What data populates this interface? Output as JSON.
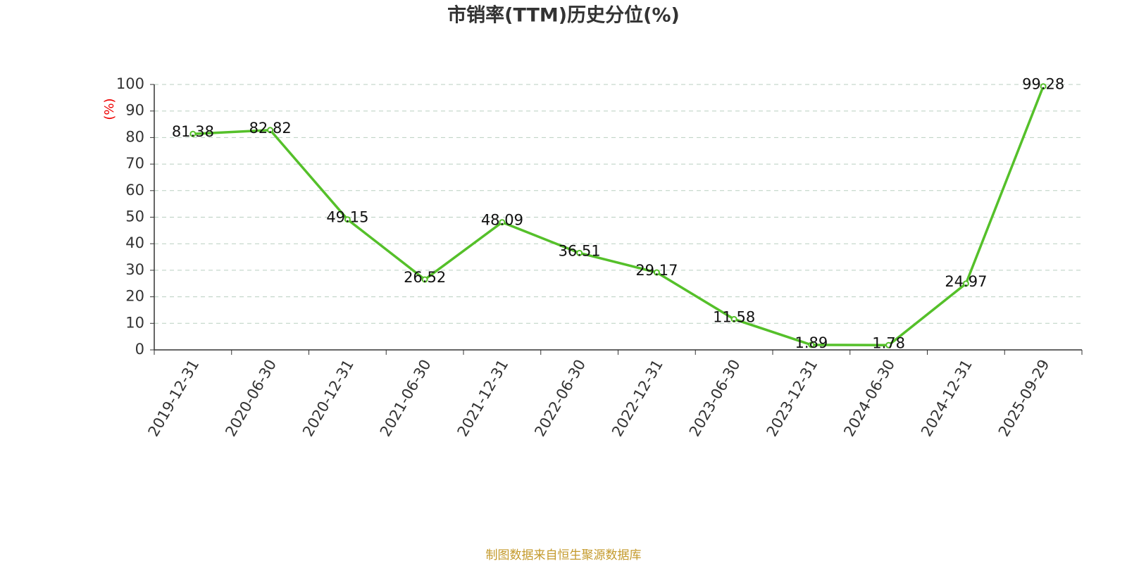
{
  "chart_data": {
    "type": "line",
    "title": "市销率(TTM)历史分位(%)",
    "y_label": "(%)",
    "source": "制图数据来自恒生聚源数据库",
    "categories": [
      "2019-12-31",
      "2020-06-30",
      "2020-12-31",
      "2021-06-30",
      "2021-12-31",
      "2022-06-30",
      "2022-12-31",
      "2023-06-30",
      "2023-12-31",
      "2024-06-30",
      "2024-12-31",
      "2025-09-29"
    ],
    "values": [
      81.38,
      82.82,
      49.15,
      26.52,
      48.09,
      36.51,
      29.17,
      11.58,
      1.89,
      1.78,
      24.97,
      99.28
    ],
    "color": "#55c02a",
    "ylim": [
      0,
      100
    ],
    "yticks": [
      0,
      10,
      20,
      30,
      40,
      50,
      60,
      70,
      80,
      90,
      100
    ],
    "grid": true
  }
}
